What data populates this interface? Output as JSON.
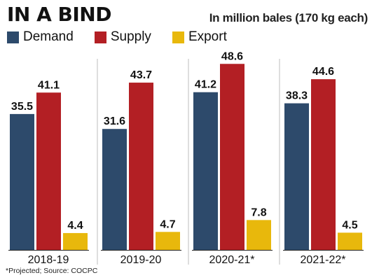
{
  "chart_data": {
    "type": "bar",
    "title": "IN A BIND",
    "subtitle": "In million bales (170 kg each)",
    "categories": [
      "2018-19",
      "2019-20",
      "2020-21*",
      "2021-22*"
    ],
    "series": [
      {
        "name": "Demand",
        "color": "#2d4a6b",
        "values": [
          35.5,
          31.6,
          41.2,
          38.3
        ]
      },
      {
        "name": "Supply",
        "color": "#b31f24",
        "values": [
          41.1,
          43.7,
          48.6,
          44.6
        ]
      },
      {
        "name": "Export",
        "color": "#e8b80c",
        "values": [
          4.4,
          4.7,
          7.8,
          4.5
        ]
      }
    ],
    "value_labels": [
      [
        "35.5",
        "31.6",
        "41.2",
        "38.3"
      ],
      [
        "41.1",
        "43.7",
        "48.6",
        "44.6"
      ],
      [
        "4.4",
        "4.7",
        "7.8",
        "4.5"
      ]
    ],
    "ylim": [
      0,
      50
    ],
    "grid": false,
    "legend_position": "top-left",
    "footnote": "*Projected; Source: COCPC"
  }
}
